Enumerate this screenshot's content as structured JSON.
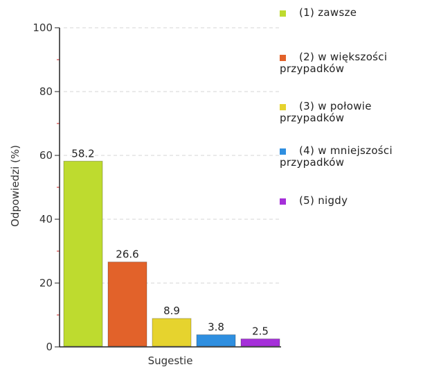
{
  "chart_data": {
    "type": "bar",
    "title": "",
    "xlabel": "Sugestie",
    "ylabel": "Odpowiedzi (%)",
    "ylim": [
      0,
      100
    ],
    "yticks": [
      0,
      20,
      40,
      60,
      80,
      100
    ],
    "grid": true,
    "legend_position": "right",
    "categories": [
      "(1) zawsze",
      "(2) w większości przypadków",
      "(3) w połowie przypadków",
      "(4) w mniejszości przypadków",
      "(5) nigdy"
    ],
    "values": [
      58.2,
      26.6,
      8.9,
      3.8,
      2.5
    ],
    "data_labels": [
      "58.2",
      "26.6",
      "8.9",
      "3.8",
      "2.5"
    ],
    "colors": [
      "#bedb2f",
      "#e2622a",
      "#e6d32e",
      "#2f8fe0",
      "#a52fd9"
    ]
  },
  "legend": [
    {
      "line1": "(1) zawsze",
      "line2": ""
    },
    {
      "line1": "(2) w większości",
      "line2": "przypadków"
    },
    {
      "line1": "(3) w połowie",
      "line2": "przypadków"
    },
    {
      "line1": "(4) w mniejszości",
      "line2": "przypadków"
    },
    {
      "line1": "(5) nigdy",
      "line2": ""
    }
  ]
}
